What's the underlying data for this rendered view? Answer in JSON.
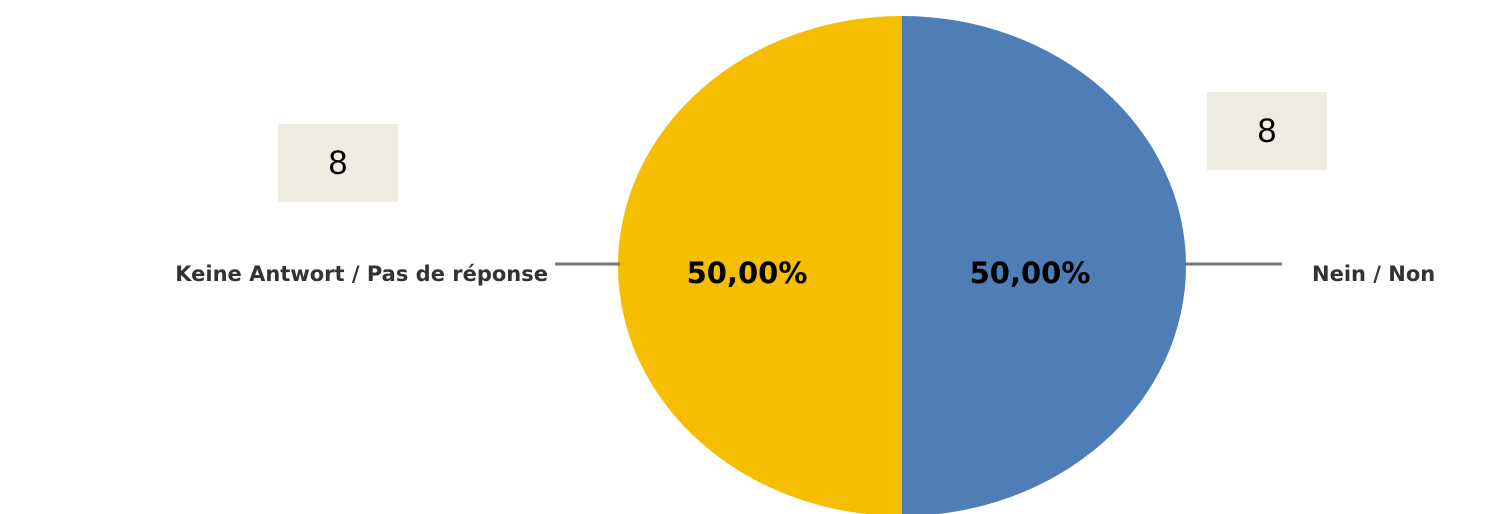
{
  "chart_data": {
    "type": "pie",
    "slices": [
      {
        "label": "Keine Antwort / Pas de réponse",
        "value": 50.0,
        "value_label": "50,00%",
        "count": "8",
        "color": "#f6be00"
      },
      {
        "label": "Nein / Non",
        "value": 50.0,
        "value_label": "50,00%",
        "count": "8",
        "color": "#4f7db6"
      }
    ],
    "legend": "none",
    "leader_line_color": "#767676"
  }
}
